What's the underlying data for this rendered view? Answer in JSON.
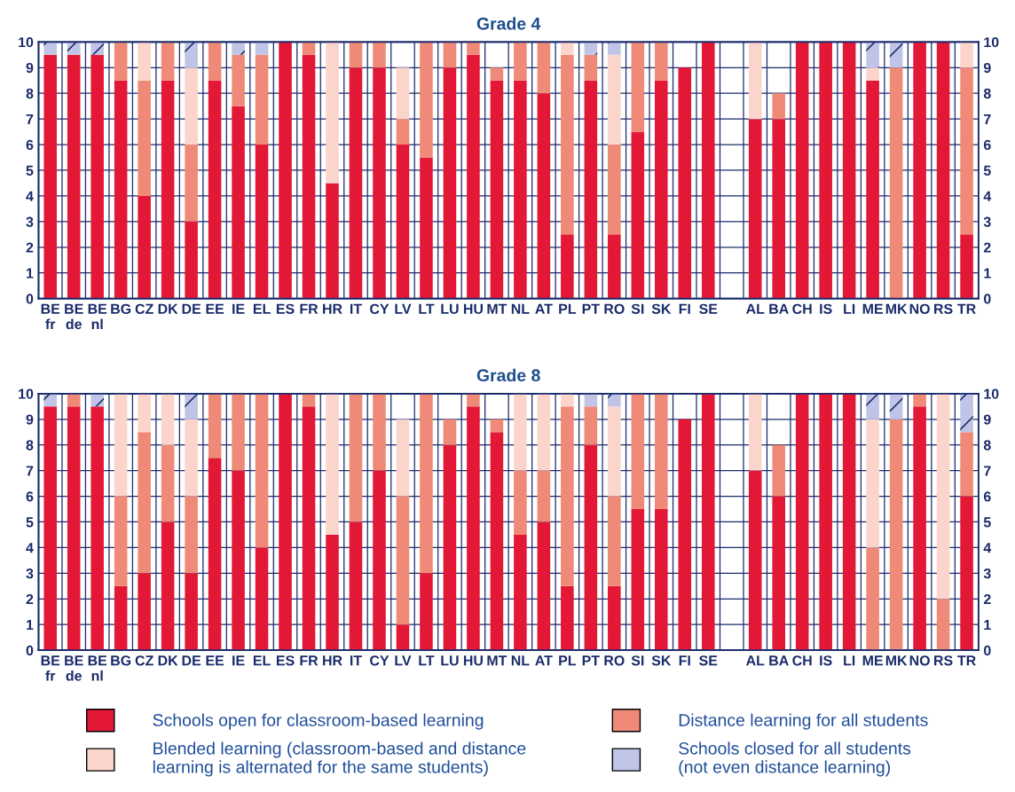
{
  "chart_data": [
    {
      "type": "bar",
      "title": "Grade 4",
      "stacked": true,
      "grid": true,
      "categories": [
        "BE\nfr",
        "BE\nde",
        "BE\nnl",
        "BG",
        "CZ",
        "DK",
        "DE",
        "EE",
        "IE",
        "EL",
        "ES",
        "FR",
        "HR",
        "IT",
        "CY",
        "LV",
        "LT",
        "LU",
        "HU",
        "MT",
        "NL",
        "AT",
        "PL",
        "PT",
        "RO",
        "SI",
        "SK",
        "FI",
        "SE",
        null,
        "AL",
        "BA",
        "CH",
        "IS",
        "LI",
        "ME",
        "MK",
        "NO",
        "RS",
        "TR"
      ],
      "series": [
        {
          "color": "#e31837",
          "values": [
            9.5,
            9.5,
            9.5,
            8.5,
            4,
            8.5,
            3,
            8.5,
            7.5,
            6,
            10,
            9.5,
            4.5,
            9,
            9,
            6,
            5.5,
            9,
            9.5,
            8.5,
            8.5,
            8,
            2.5,
            8.5,
            2.5,
            6.5,
            8.5,
            9,
            10,
            null,
            7,
            7,
            10,
            10,
            10,
            8.5,
            0,
            10,
            10,
            2.5
          ]
        },
        {
          "color": "#f08a78",
          "values": [
            0,
            0,
            0,
            1.5,
            4.5,
            1.5,
            3,
            1.5,
            2,
            3.5,
            0,
            0.5,
            0,
            1,
            1,
            1,
            4.5,
            1,
            0.5,
            0.5,
            1.5,
            2,
            7,
            1,
            3.5,
            3.5,
            1.5,
            0,
            0,
            null,
            0,
            1,
            0,
            0,
            0,
            0,
            9,
            0,
            0,
            6.5
          ]
        },
        {
          "color": "#fbd5cb",
          "values": [
            0,
            0,
            0,
            0,
            1.5,
            0,
            3,
            0,
            0,
            0,
            0,
            0,
            5.5,
            0,
            0,
            2,
            0,
            0,
            0,
            0,
            0,
            0,
            0.5,
            0,
            3.5,
            0,
            0,
            0,
            0,
            null,
            3,
            0,
            0,
            0,
            0,
            0.5,
            0,
            0,
            0,
            1
          ]
        },
        {
          "color": "#c0c4e6",
          "values": [
            0.5,
            0.5,
            0.5,
            0,
            0,
            0,
            1,
            0,
            0.5,
            0.5,
            0,
            0,
            0,
            0,
            0,
            0,
            0,
            0,
            0,
            0,
            0,
            0,
            0,
            0.5,
            0.5,
            0,
            0,
            0,
            0,
            null,
            0,
            0,
            0,
            0,
            0,
            1,
            1,
            0,
            0,
            0
          ]
        }
      ],
      "ylim": [
        0,
        10
      ],
      "yticks": [
        0,
        1,
        2,
        3,
        4,
        5,
        6,
        7,
        8,
        9,
        10
      ],
      "y2lim": [
        0,
        10
      ],
      "y2ticks": [
        0,
        1,
        2,
        3,
        4,
        5,
        6,
        7,
        8,
        9,
        10
      ]
    },
    {
      "type": "bar",
      "title": "Grade 8",
      "stacked": true,
      "grid": true,
      "legend": "bottom",
      "categories": [
        "BE\nfr",
        "BE\nde",
        "BE\nnl",
        "BG",
        "CZ",
        "DK",
        "DE",
        "EE",
        "IE",
        "EL",
        "ES",
        "FR",
        "HR",
        "IT",
        "CY",
        "LV",
        "LT",
        "LU",
        "HU",
        "MT",
        "NL",
        "AT",
        "PL",
        "PT",
        "RO",
        "SI",
        "SK",
        "FI",
        "SE",
        null,
        "AL",
        "BA",
        "CH",
        "IS",
        "LI",
        "ME",
        "MK",
        "NO",
        "RS",
        "TR"
      ],
      "series": [
        {
          "name": "Schools open for classroom-based learning",
          "color": "#e31837",
          "values": [
            9.5,
            9.5,
            9.5,
            2.5,
            3,
            5,
            3,
            7.5,
            7,
            4,
            10,
            9.5,
            4.5,
            5,
            7,
            1,
            3,
            8,
            9.5,
            8.5,
            4.5,
            5,
            2.5,
            8,
            2.5,
            5.5,
            5.5,
            9,
            10,
            null,
            7,
            6,
            10,
            10,
            10,
            0,
            0,
            9.5,
            0,
            6
          ]
        },
        {
          "name": "Distance learning for all students",
          "color": "#f08a78",
          "values": [
            0,
            0.5,
            0,
            3.5,
            5.5,
            3,
            3,
            2.5,
            3,
            6,
            0,
            0.5,
            0,
            5,
            3,
            5,
            7,
            1,
            0.5,
            0.5,
            2.5,
            2,
            7,
            1.5,
            3.5,
            4.5,
            4.5,
            0,
            0,
            null,
            0,
            2,
            0,
            0,
            0,
            4,
            9,
            0.5,
            2,
            2.5
          ]
        },
        {
          "name": "Blended learning (classroom-based and distance\nlearning is alternated for the same students)",
          "color": "#fbd5cb",
          "values": [
            0,
            0,
            0,
            4,
            1.5,
            2,
            3,
            0,
            0,
            0,
            0,
            0,
            5.5,
            0,
            0,
            3,
            0,
            0,
            0,
            0,
            3,
            3,
            0.5,
            0,
            3.5,
            0,
            0,
            0,
            0,
            null,
            3,
            0,
            0,
            0,
            0,
            5,
            0,
            0,
            8,
            0
          ]
        },
        {
          "name": "Schools closed for all students\n(not even distance learning)",
          "color": "#c0c4e6",
          "values": [
            0.5,
            0,
            0.5,
            0,
            0,
            0,
            1,
            0,
            0,
            0,
            0,
            0,
            0,
            0,
            0,
            0,
            0,
            0,
            0,
            0,
            0,
            0,
            0,
            0.5,
            0.5,
            0,
            0,
            0,
            0,
            null,
            0,
            0,
            0,
            0,
            0,
            1,
            1,
            0,
            0,
            1.5
          ]
        }
      ],
      "ylim": [
        0,
        10
      ],
      "yticks": [
        0,
        1,
        2,
        3,
        4,
        5,
        6,
        7,
        8,
        9,
        10
      ],
      "y2lim": [
        0,
        10
      ],
      "y2ticks": [
        0,
        1,
        2,
        3,
        4,
        5,
        6,
        7,
        8,
        9,
        10
      ]
    }
  ]
}
